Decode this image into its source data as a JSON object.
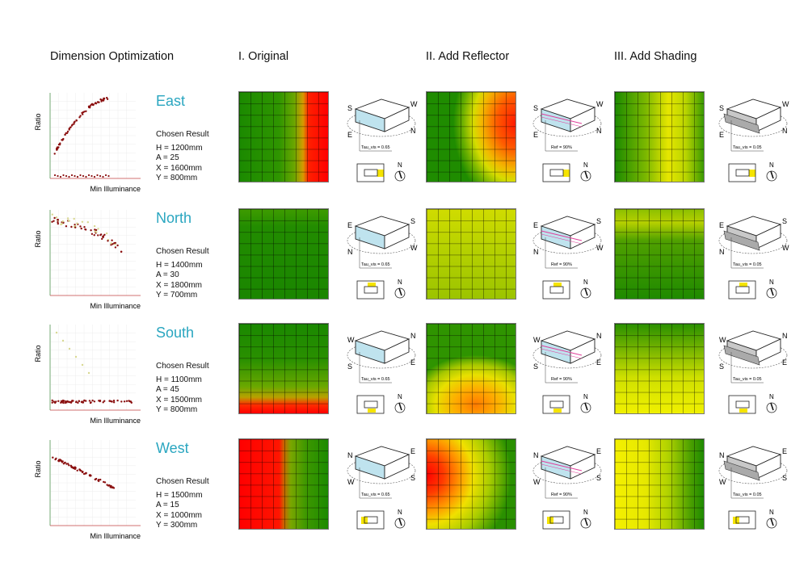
{
  "headers": {
    "dimension": "Dimension Optimization",
    "original": "I. Original",
    "reflector": "II. Add Reflector",
    "shading": "III. Add Shading"
  },
  "axis": {
    "y": "Ratio",
    "x": "Min Illuminance"
  },
  "chosen_label": "Chosen Result",
  "rows": [
    {
      "direction": "East",
      "h": "H = 1200mm",
      "a": "A = 25",
      "x": "X = 1600mm",
      "y": "Y = 800mm",
      "labels": [
        "S",
        "W",
        "E",
        "N"
      ],
      "window": "right",
      "tau": "Tau_vis = 0.65",
      "ref": "Ref = 90%",
      "tau_shade": "Tau_vis = 0.05"
    },
    {
      "direction": "North",
      "h": "H = 1400mm",
      "a": "A = 30",
      "x": "X = 1800mm",
      "y": "Y = 700mm",
      "labels": [
        "E",
        "S",
        "N",
        "W"
      ],
      "window": "top",
      "tau": "Tau_vis = 0.65",
      "ref": "Ref = 90%",
      "tau_shade": "Tau_vis = 0.05"
    },
    {
      "direction": "South",
      "h": "H = 1100mm",
      "a": "A = 45",
      "x": "X = 1500mm",
      "y": "Y = 800mm",
      "labels": [
        "W",
        "N",
        "S",
        "E"
      ],
      "window": "bottom",
      "tau": "Tau_vis = 0.65",
      "ref": "Ref = 90%",
      "tau_shade": "Tau_vis = 0.05"
    },
    {
      "direction": "West",
      "h": "H = 1500mm",
      "a": "A = 15",
      "x": "X = 1000mm",
      "y": "Y = 300mm",
      "labels": [
        "N",
        "E",
        "W",
        "S"
      ],
      "window": "left",
      "tau": "Tau_vis = 0.65",
      "ref": "Ref = 90%",
      "tau_shade": "Tau_vis = 0.05"
    }
  ],
  "compass": "N",
  "colors": {
    "title": "#2aa6c0",
    "window": "#f5e400",
    "glass": "#bfe3ee",
    "reflector": "#e0409a"
  }
}
